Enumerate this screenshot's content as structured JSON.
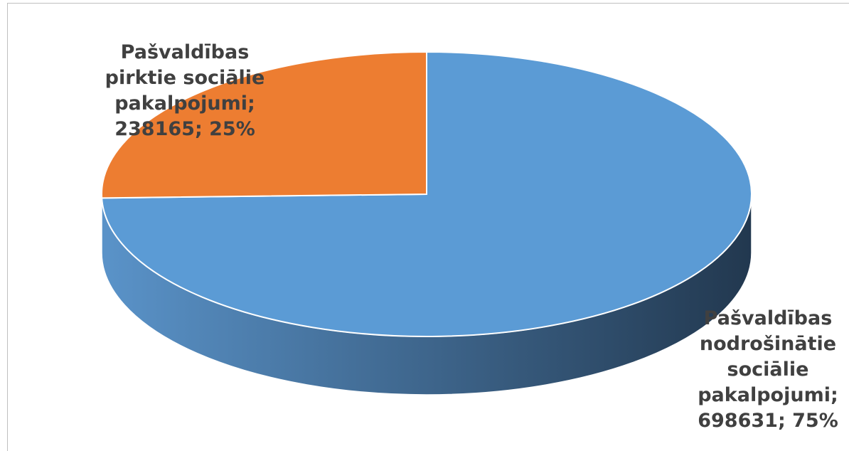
{
  "chart_data": {
    "type": "pie",
    "style": "3d",
    "slices": [
      {
        "label_lines": [
          "Pašvaldības",
          "nodrošinātie",
          "sociālie",
          "pakalpojumi;"
        ],
        "value": 698631,
        "percent": "75%",
        "value_line": "698631; 75%",
        "color": "#5b9bd5",
        "side_color_light": "#5a93c9",
        "side_color_dark": "#22384f"
      },
      {
        "label_lines": [
          "Pašvaldības",
          "pirktie sociālie",
          "pakalpojumi;"
        ],
        "value": 238165,
        "percent": "25%",
        "value_line": "238165; 25%",
        "color": "#ed7d31"
      }
    ]
  }
}
